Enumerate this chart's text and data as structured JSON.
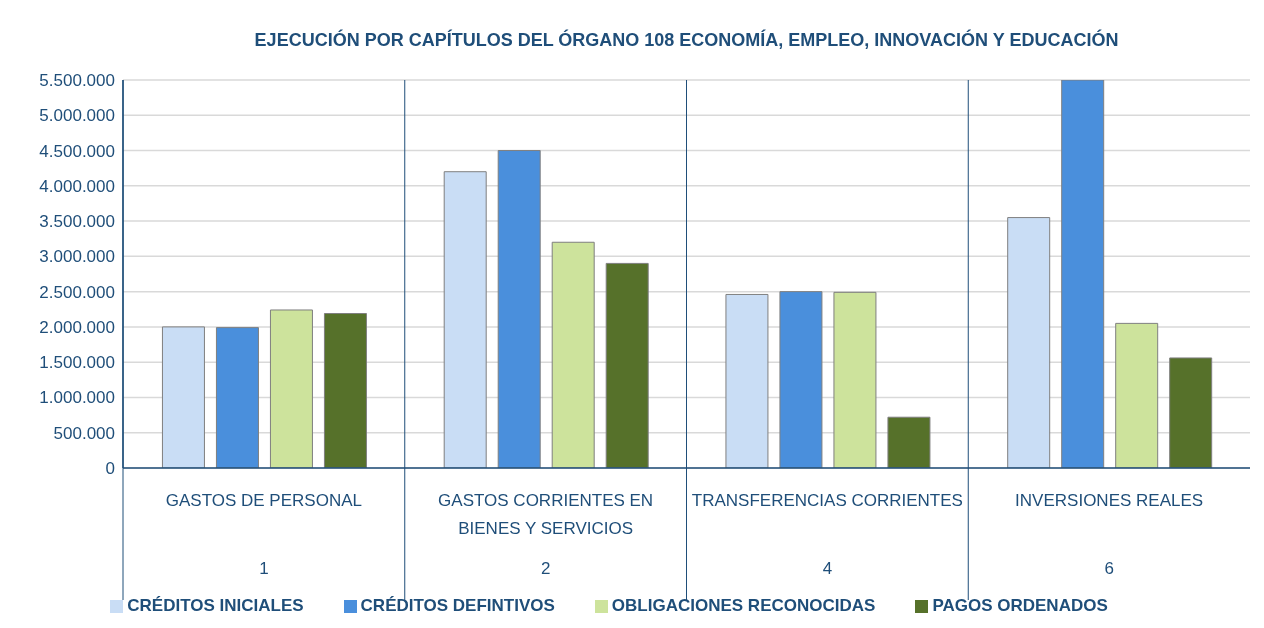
{
  "chart_data": {
    "type": "bar",
    "title": "EJECUCIÓN POR CAPÍTULOS DEL ÓRGANO 108 ECONOMÍA, EMPLEO, INNOVACIÓN Y EDUCACIÓN",
    "categories": [
      "GASTOS DE PERSONAL\n1",
      "GASTOS CORRIENTES EN BIENES Y SERVICIOS\n2",
      "TRANSFERENCIAS CORRIENTES\n4",
      "INVERSIONES REALES\n6"
    ],
    "series": [
      {
        "name": "CRÉDITOS INICIALES",
        "color": "#c9ddf5",
        "values": [
          2000000,
          4200000,
          2460000,
          3550000
        ]
      },
      {
        "name": "CRÉDITOS DEFINTIVOS",
        "color": "#4a8fdc",
        "values": [
          1990000,
          4500000,
          2500000,
          5500000
        ]
      },
      {
        "name": "OBLIGACIONES RECONOCIDAS",
        "color": "#cde39c",
        "values": [
          2240000,
          3200000,
          2490000,
          2050000
        ]
      },
      {
        "name": "PAGOS ORDENADOS",
        "color": "#56712a",
        "values": [
          2190000,
          2900000,
          720000,
          1560000
        ]
      }
    ],
    "ylim": [
      0,
      5500000
    ],
    "yticks": [
      {
        "value": 0,
        "label": "0"
      },
      {
        "value": 500000,
        "label": "500.000"
      },
      {
        "value": 1000000,
        "label": "1.000.000"
      },
      {
        "value": 1500000,
        "label": "1.500.000"
      },
      {
        "value": 2000000,
        "label": "2.000.000"
      },
      {
        "value": 2500000,
        "label": "2.500.000"
      },
      {
        "value": 3000000,
        "label": "3.000.000"
      },
      {
        "value": 3500000,
        "label": "3.500.000"
      },
      {
        "value": 4000000,
        "label": "4.000.000"
      },
      {
        "value": 4500000,
        "label": "4.500.000"
      },
      {
        "value": 5000000,
        "label": "5.000.000"
      },
      {
        "value": 5500000,
        "label": "5.500.000"
      }
    ],
    "grid": "y",
    "legend": "bottom"
  }
}
